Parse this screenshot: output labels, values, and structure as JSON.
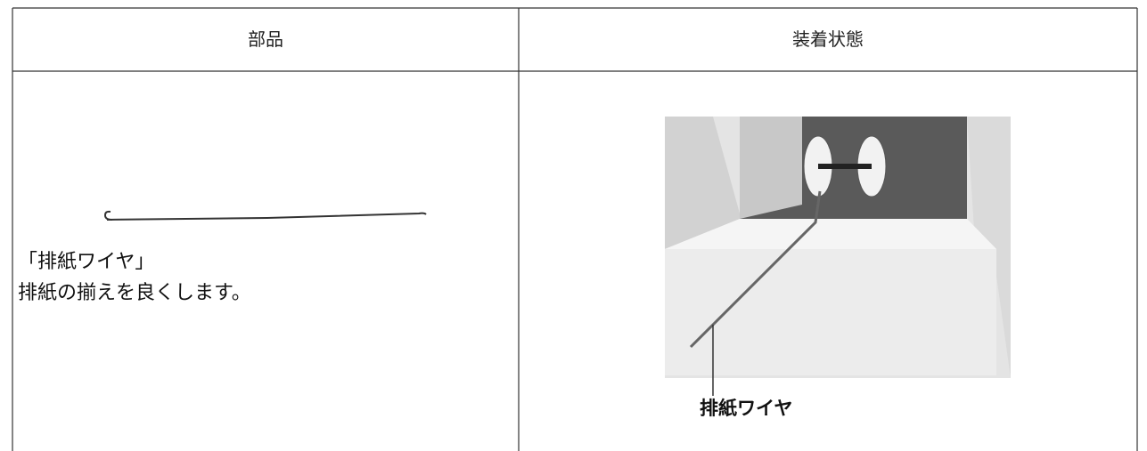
{
  "table": {
    "header": [
      "部品",
      "装着状態"
    ],
    "rows": [
      [
        {
          "title": "「排紙ワイヤ」",
          "description": "排紙の揃えを良くします。"
        },
        {
          "callout": "排紙ワイヤ"
        }
      ]
    ]
  }
}
